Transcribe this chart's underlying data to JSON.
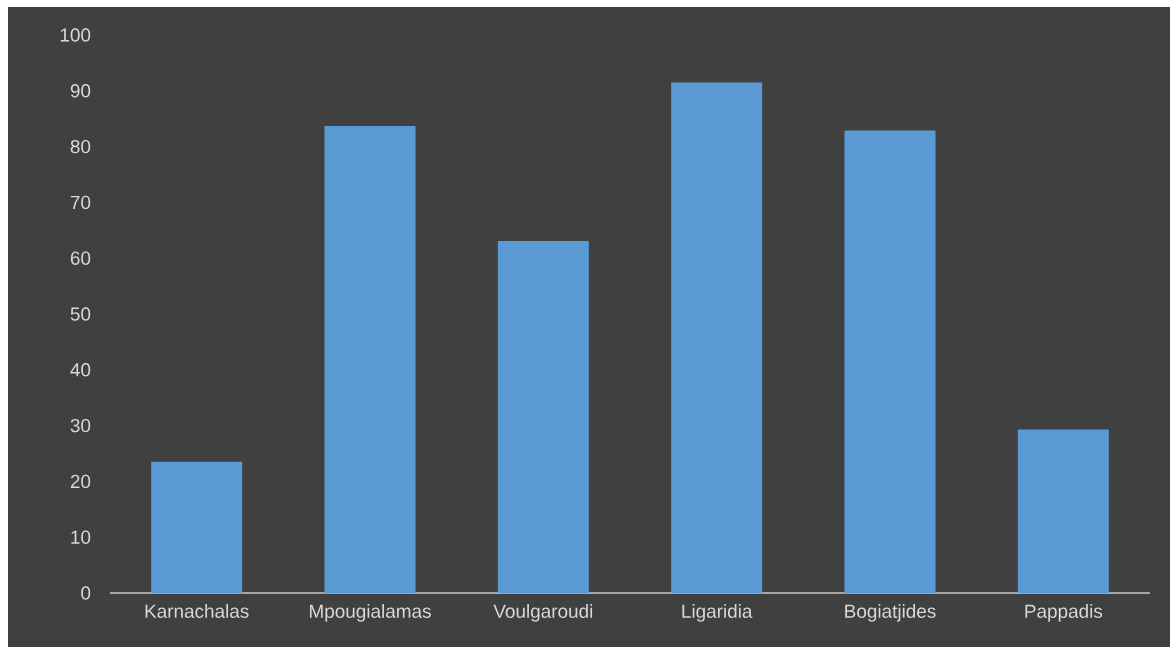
{
  "chart_data": {
    "type": "bar",
    "categories": [
      "Karnachalas",
      "Mpougialamas",
      "Voulgaroudi",
      "Ligaridia",
      "Bogiatjides",
      "Pappadis"
    ],
    "values": [
      23.5,
      83.7,
      63.1,
      91.5,
      82.9,
      29.3
    ],
    "color": "#5b9bd5",
    "ylim": [
      0,
      100
    ],
    "yticks": [
      0,
      10,
      20,
      30,
      40,
      50,
      60,
      70,
      80,
      90,
      100
    ],
    "grid": false
  }
}
